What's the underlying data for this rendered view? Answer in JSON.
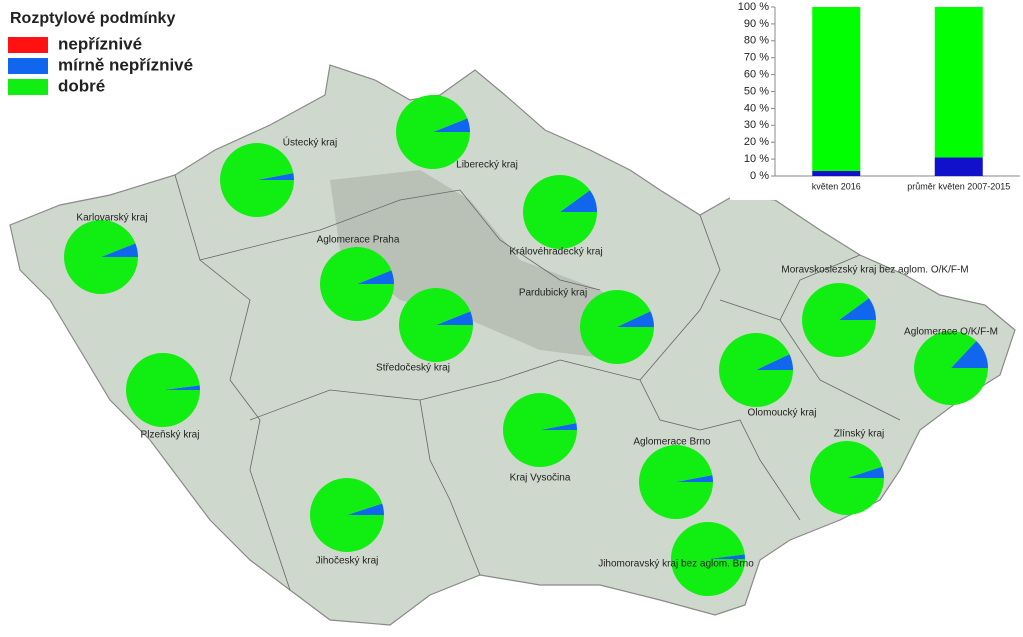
{
  "legend": {
    "title": "Rozptylové podmínky",
    "items": [
      {
        "name": "nepříznivé",
        "color": "#ff1111"
      },
      {
        "name": "mírně nepříznivé",
        "color": "#1166ee"
      },
      {
        "name": "dobré",
        "color": "#11ee11"
      }
    ]
  },
  "map": {
    "regions": [
      {
        "label": "Ústecký kraj",
        "values": [
          0,
          3,
          97
        ]
      },
      {
        "label": "Liberecký kraj",
        "values": [
          0,
          6,
          94
        ]
      },
      {
        "label": "Karlovarský kraj",
        "values": [
          0,
          6,
          94
        ]
      },
      {
        "label": "Královéhradecký kraj",
        "values": [
          0,
          10,
          90
        ]
      },
      {
        "label": "Aglomerace Praha",
        "values": [
          0,
          6,
          94
        ]
      },
      {
        "label": "Středočeský kraj",
        "values": [
          0,
          6,
          94
        ]
      },
      {
        "label": "Pardubický kraj",
        "values": [
          0,
          7,
          93
        ]
      },
      {
        "label": "Plzeňský kraj",
        "values": [
          0,
          2,
          98
        ]
      },
      {
        "label": "Kraj Vysočina",
        "values": [
          0,
          3,
          97
        ]
      },
      {
        "label": "Jihočeský kraj",
        "values": [
          0,
          5,
          95
        ]
      },
      {
        "label": "Aglomerace Brno",
        "values": [
          0,
          3,
          97
        ]
      },
      {
        "label": "Jihomoravský kraj bez aglom. Brno",
        "values": [
          0,
          2,
          98
        ]
      },
      {
        "label": "Olomoucký kraj",
        "values": [
          0,
          7,
          93
        ]
      },
      {
        "label": "Moravskoslezský kraj bez aglom. O/K/F-M",
        "values": [
          0,
          10,
          90
        ]
      },
      {
        "label": "Aglomerace O/K/F-M",
        "values": [
          0,
          13,
          87
        ]
      },
      {
        "label": "Zlínský kraj",
        "values": [
          0,
          5,
          95
        ]
      }
    ]
  },
  "chart_data": {
    "type": "bar",
    "stacked": true,
    "categories": [
      "květen 2016",
      "průměr květen 2007-2015"
    ],
    "series": [
      {
        "color": "#ff0000",
        "values": [
          0,
          0
        ]
      },
      {
        "color": "#1111cc",
        "values": [
          3,
          11
        ]
      },
      {
        "color": "#00ff00",
        "values": [
          97,
          89
        ]
      }
    ],
    "ylim": [
      0,
      100
    ],
    "yticks": [
      {
        "value": 0,
        "label": "0 %"
      },
      {
        "value": 10,
        "label": "10 %"
      },
      {
        "value": 20,
        "label": "20 %"
      },
      {
        "value": 30,
        "label": "30 %"
      },
      {
        "value": 40,
        "label": "40 %"
      },
      {
        "value": 50,
        "label": "50 %"
      },
      {
        "value": 60,
        "label": "60 %"
      },
      {
        "value": 70,
        "label": "70 %"
      },
      {
        "value": 80,
        "label": "80 %"
      },
      {
        "value": 90,
        "label": "90 %"
      },
      {
        "value": 100,
        "label": "100 %"
      }
    ]
  }
}
